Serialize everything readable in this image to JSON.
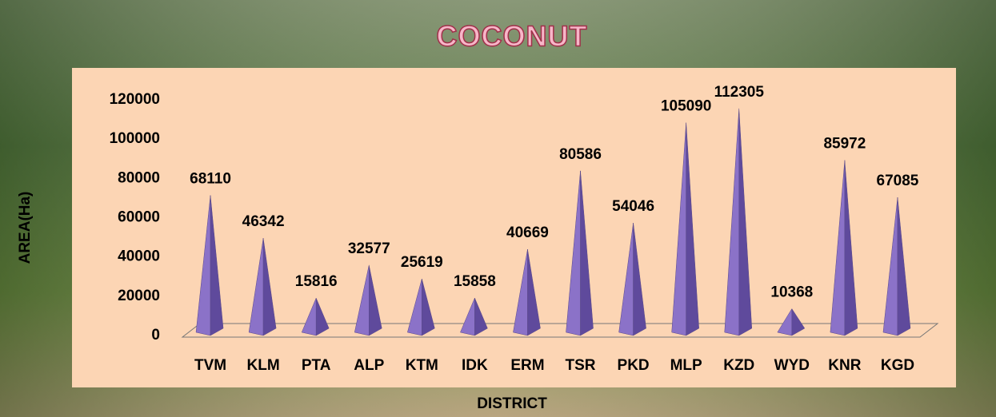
{
  "chart_data": {
    "type": "pyramid",
    "title": "COCONUT",
    "x_label": "DISTRICT",
    "y_label": "AREA(Ha)",
    "categories": [
      "TVM",
      "KLM",
      "PTA",
      "ALP",
      "KTM",
      "IDK",
      "ERM",
      "TSR",
      "PKD",
      "MLP",
      "KZD",
      "WYD",
      "KNR",
      "KGD"
    ],
    "values": [
      68110,
      46342,
      15816,
      32577,
      25619,
      15858,
      40669,
      80586,
      54046,
      105090,
      112305,
      10368,
      85972,
      67085
    ],
    "color": "#8b72c8",
    "ylim": [
      0,
      120000
    ],
    "yticks": [
      0,
      20000,
      40000,
      60000,
      80000,
      100000,
      120000
    ],
    "grid": false
  }
}
